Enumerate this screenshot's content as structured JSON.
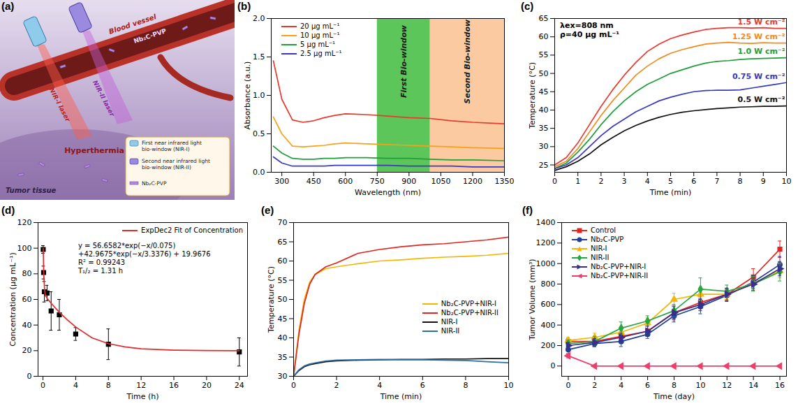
{
  "chart_data": [
    {
      "type": "diagram",
      "panel": "(a)",
      "labels": {
        "vessel": "Blood vessel",
        "laser_1": "NIR-I laser",
        "laser_2": "NIR-II laser",
        "agent": "Nb₂C-PVP",
        "effect": "Hyperthermia",
        "tissue": "Tumor tissue"
      },
      "key": [
        "First near infrared light bio-window (NIR-I)",
        "Second near infrared light bio-window (NIR-II)",
        "Nb₂C-PVP"
      ]
    },
    {
      "type": "line",
      "panel": "(b)",
      "xlabel": "Wavelength (nm)",
      "ylabel": "Absorbance (a.u.)",
      "x": [
        260,
        300,
        350,
        400,
        450,
        500,
        550,
        600,
        700,
        800,
        900,
        1000,
        1100,
        1200,
        1350
      ],
      "series": [
        {
          "name": "20 μg mL⁻¹",
          "color": "#e8392f",
          "values": [
            1.45,
            0.95,
            0.68,
            0.65,
            0.67,
            0.71,
            0.74,
            0.76,
            0.75,
            0.73,
            0.71,
            0.7,
            0.67,
            0.65,
            0.63
          ]
        },
        {
          "name": "10 μg mL⁻¹",
          "color": "#f5a21b",
          "values": [
            0.72,
            0.5,
            0.34,
            0.33,
            0.34,
            0.35,
            0.37,
            0.38,
            0.37,
            0.36,
            0.35,
            0.34,
            0.33,
            0.32,
            0.31
          ]
        },
        {
          "name": "5 μg mL⁻¹",
          "color": "#1f9e3a",
          "values": [
            0.34,
            0.25,
            0.18,
            0.17,
            0.17,
            0.18,
            0.18,
            0.19,
            0.19,
            0.18,
            0.18,
            0.17,
            0.16,
            0.16,
            0.15
          ]
        },
        {
          "name": "2.5 μg mL⁻¹",
          "color": "#3a3ab8",
          "values": [
            0.2,
            0.12,
            0.08,
            0.08,
            0.08,
            0.08,
            0.09,
            0.09,
            0.09,
            0.09,
            0.08,
            0.08,
            0.08,
            0.07,
            0.07
          ]
        }
      ],
      "bands": [
        {
          "label": "First Bio-window",
          "range": [
            750,
            1000
          ],
          "color": "#5cc65a"
        },
        {
          "label": "Second Bio-window",
          "range": [
            1000,
            1350
          ],
          "color": "#fbcaa0"
        }
      ],
      "xlim": [
        250,
        1350
      ],
      "xticks": [
        300,
        450,
        600,
        750,
        900,
        1050,
        1200,
        1350
      ],
      "ylim": [
        0,
        2
      ],
      "yticks": [
        {
          "value": 0,
          "label": "0.0"
        },
        {
          "value": 0.5,
          "label": "0.5"
        },
        {
          "value": 1,
          "label": "1.0"
        },
        {
          "value": 1.5,
          "label": "1.5"
        },
        {
          "value": 2,
          "label": "2.0"
        }
      ],
      "legend": "upper left"
    },
    {
      "type": "line",
      "panel": "(c)",
      "xlabel": "Time (min)",
      "ylabel": "Temperature (°C)",
      "annotations": [
        "λex=808 nm",
        "ρ=40 μg mL⁻¹"
      ],
      "x": [
        0,
        0.5,
        1,
        1.5,
        2,
        2.5,
        3,
        3.5,
        4,
        4.5,
        5,
        5.5,
        6,
        6.5,
        7,
        7.5,
        8,
        8.5,
        9,
        9.5,
        10
      ],
      "series": [
        {
          "name": "1.5 W cm⁻²",
          "color": "#e8392f",
          "values": [
            25,
            27,
            31,
            36,
            41,
            45.5,
            49.5,
            53,
            56,
            58,
            59.5,
            60.5,
            61.3,
            62,
            62.3,
            62.5,
            62.5,
            62.4,
            62.5,
            62.3,
            62.3
          ]
        },
        {
          "name": "1.25 W cm⁻²",
          "color": "#f08a1c",
          "values": [
            24.5,
            26,
            29.5,
            34,
            38.5,
            42.5,
            46,
            49.5,
            52,
            54,
            55.5,
            56.5,
            57.3,
            58,
            58.3,
            58.5,
            58.3,
            58.2,
            58.4,
            58.3,
            58.3
          ]
        },
        {
          "name": "1.0 W cm⁻²",
          "color": "#1f9e3a",
          "values": [
            24,
            25.5,
            28.5,
            32,
            36,
            39.5,
            42.5,
            45,
            47,
            48.5,
            50,
            51,
            52,
            52.8,
            53.3,
            53.5,
            53.8,
            54,
            54.1,
            54.2,
            54.3
          ]
        },
        {
          "name": "0.75 W cm⁻²",
          "color": "#3a3ab8",
          "values": [
            24,
            25,
            27,
            30,
            33,
            35.5,
            37.5,
            39.5,
            41,
            42.5,
            43.5,
            44.3,
            45,
            45.3,
            45.4,
            45.4,
            45.5,
            46,
            46.5,
            47,
            47.5
          ]
        },
        {
          "name": "0.5 W cm⁻²",
          "color": "#111111",
          "values": [
            23.5,
            24.5,
            26,
            28,
            30.5,
            32.5,
            34.3,
            35.8,
            37,
            38,
            38.8,
            39.4,
            39.8,
            40.1,
            40.4,
            40.6,
            40.8,
            40.9,
            41,
            41,
            41.1
          ]
        }
      ],
      "xlim": [
        0,
        10
      ],
      "xticks": [
        0,
        1,
        2,
        3,
        4,
        5,
        6,
        7,
        8,
        9,
        10
      ],
      "ylim": [
        23,
        65
      ],
      "yticks": [
        25,
        30,
        35,
        40,
        45,
        50,
        55,
        60,
        65
      ]
    },
    {
      "type": "scatter",
      "panel": "(d)",
      "xlabel": "Time (h)",
      "ylabel": "Concentration (μg mL⁻¹)",
      "annotations": [
        "y = 56.6582*exp(−x/0.075)",
        "+42.9675*exp(−x/3.3376) + 19.9676",
        "R² = 0.99243",
        "T₁/₂ = 1.31 h"
      ],
      "series": [
        {
          "color": "#000000",
          "marker": "square",
          "x": [
            0.03,
            0.08,
            0.17,
            0.5,
            1,
            2,
            4,
            8,
            24
          ],
          "values": [
            99,
            81,
            66,
            65,
            51,
            48,
            33,
            25,
            19
          ],
          "errors": [
            3,
            5,
            8,
            6,
            15,
            12,
            5,
            12,
            11
          ]
        },
        {
          "name": "ExpDec2 Fit of Concentration",
          "type": "line",
          "color": "#e02b2b",
          "x": [
            0.03,
            0.1,
            0.2,
            0.3,
            0.5,
            1,
            2,
            3,
            4,
            6,
            8,
            10,
            12,
            16,
            20,
            24
          ],
          "values": [
            100,
            80,
            67,
            63,
            61,
            57,
            50,
            44,
            38.5,
            30,
            25.5,
            23,
            21.5,
            20.4,
            20.1,
            20
          ]
        }
      ],
      "xlim": [
        -0.6,
        25
      ],
      "xticks": [
        0,
        4,
        8,
        12,
        16,
        20,
        24
      ],
      "ylim": [
        0,
        120
      ],
      "yticks": [
        0,
        20,
        40,
        60,
        80,
        100,
        120
      ],
      "legend": "upper right"
    },
    {
      "type": "line",
      "panel": "(e)",
      "xlabel": "Time (min)",
      "ylabel": "Temperature (°C)",
      "x": [
        0,
        0.25,
        0.5,
        0.75,
        1,
        1.5,
        2,
        3,
        4,
        5,
        6,
        7,
        8,
        9,
        10
      ],
      "series": [
        {
          "name": "Nb₂C-PVP+NIR-I",
          "color": "#f2b705",
          "values": [
            30,
            42,
            50,
            54.5,
            56.5,
            58,
            58.5,
            59.3,
            60,
            60.3,
            60.7,
            61,
            61.2,
            61.5,
            62
          ]
        },
        {
          "name": "Nb₂C-PVP+NIR-II",
          "color": "#e0261f",
          "values": [
            30,
            41,
            49,
            54,
            56.5,
            58.5,
            59.5,
            62,
            63,
            63.7,
            64.2,
            64.5,
            65,
            65.5,
            66.2
          ]
        },
        {
          "name": "NIR-I",
          "color": "#111111",
          "values": [
            30,
            31.5,
            32.5,
            33,
            33.3,
            33.8,
            34,
            34.2,
            34.3,
            34.4,
            34.4,
            34.5,
            34.5,
            34.6,
            34.6
          ]
        },
        {
          "name": "NIR-II",
          "color": "#2c6fa3",
          "values": [
            30,
            31.7,
            32.7,
            33.2,
            33.5,
            34,
            34.2,
            34.3,
            34.4,
            34.3,
            34.3,
            34.2,
            34.1,
            33.8,
            33.5
          ]
        }
      ],
      "xlim": [
        0,
        10
      ],
      "xticks": [
        0,
        2,
        4,
        6,
        8,
        10
      ],
      "ylim": [
        30,
        70
      ],
      "yticks": [
        30,
        35,
        40,
        45,
        50,
        55,
        60,
        65,
        70
      ],
      "legend": "center right"
    },
    {
      "type": "line",
      "panel": "(f)",
      "xlabel": "Time (day)",
      "ylabel": "Tumor Volume (mm³)",
      "x": [
        0,
        2,
        4,
        6,
        8,
        10,
        12,
        14,
        16
      ],
      "series": [
        {
          "name": "Control",
          "color": "#e0261f",
          "marker": "square",
          "values": [
            240,
            240,
            290,
            340,
            520,
            620,
            700,
            870,
            1140
          ],
          "errors": [
            30,
            30,
            40,
            50,
            70,
            60,
            60,
            80,
            80
          ]
        },
        {
          "name": "Nb₂C-PVP",
          "color": "#1f3f94",
          "marker": "circle",
          "values": [
            160,
            220,
            240,
            310,
            490,
            580,
            690,
            820,
            990
          ],
          "errors": [
            40,
            30,
            50,
            40,
            60,
            70,
            60,
            60,
            80
          ]
        },
        {
          "name": "NIR-I",
          "color": "#f2b705",
          "marker": "triangle",
          "values": [
            250,
            280,
            330,
            420,
            650,
            700,
            700,
            810,
            930
          ],
          "errors": [
            30,
            40,
            50,
            50,
            60,
            60,
            50,
            60,
            70
          ]
        },
        {
          "name": "NIR-II",
          "color": "#27a744",
          "marker": "diamond",
          "values": [
            220,
            240,
            370,
            440,
            540,
            750,
            730,
            800,
            920
          ],
          "errors": [
            30,
            50,
            60,
            50,
            60,
            110,
            60,
            70,
            90
          ]
        },
        {
          "name": "Nb₂C-PVP+NIR-I",
          "color": "#3a2f8a",
          "marker": "triangle-right",
          "values": [
            200,
            230,
            280,
            340,
            520,
            600,
            700,
            800,
            950
          ],
          "errors": [
            30,
            40,
            40,
            50,
            60,
            60,
            60,
            60,
            70
          ]
        },
        {
          "name": "Nb₂C-PVP+NIR-II",
          "color": "#ec3f6a",
          "marker": "triangle-left",
          "values": [
            100,
            0,
            0,
            0,
            0,
            0,
            0,
            0,
            0
          ],
          "errors": [
            20,
            0,
            0,
            0,
            0,
            0,
            0,
            0,
            0
          ]
        }
      ],
      "xlim": [
        -0.5,
        16.5
      ],
      "xticks": [
        0,
        2,
        4,
        6,
        8,
        10,
        12,
        14,
        16
      ],
      "ylim": [
        -100,
        1400
      ],
      "yticks": [
        0,
        200,
        400,
        600,
        800,
        1000,
        1200,
        1400
      ],
      "legend": "upper left"
    }
  ]
}
